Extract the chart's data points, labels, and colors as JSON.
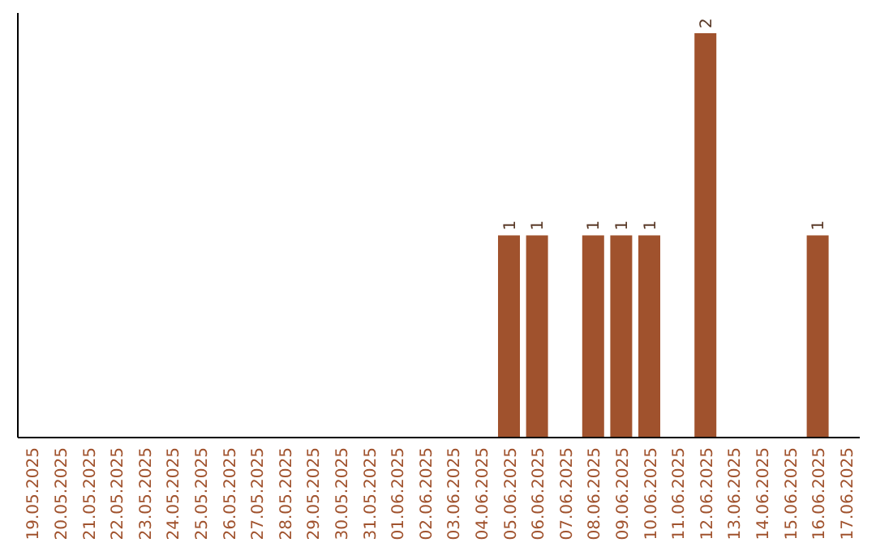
{
  "chart_data": {
    "type": "bar",
    "categories": [
      "19.05.2025",
      "20.05.2025",
      "21.05.2025",
      "22.05.2025",
      "23.05.2025",
      "24.05.2025",
      "25.05.2025",
      "26.05.2025",
      "27.05.2025",
      "28.05.2025",
      "29.05.2025",
      "30.05.2025",
      "31.05.2025",
      "01.06.2025",
      "02.06.2025",
      "03.06.2025",
      "04.06.2025",
      "05.06.2025",
      "06.06.2025",
      "07.06.2025",
      "08.06.2025",
      "09.06.2025",
      "10.06.2025",
      "11.06.2025",
      "12.06.2025",
      "13.06.2025",
      "14.06.2025",
      "15.06.2025",
      "16.06.2025",
      "17.06.2025"
    ],
    "values": [
      null,
      null,
      null,
      null,
      null,
      null,
      null,
      null,
      null,
      null,
      null,
      null,
      null,
      null,
      null,
      null,
      null,
      1,
      1,
      null,
      1,
      1,
      1,
      null,
      2,
      null,
      null,
      null,
      1,
      null
    ],
    "data_labels": true,
    "color": "#a0522d",
    "ylim": [
      0,
      2.1
    ],
    "tick_labels": "x"
  }
}
